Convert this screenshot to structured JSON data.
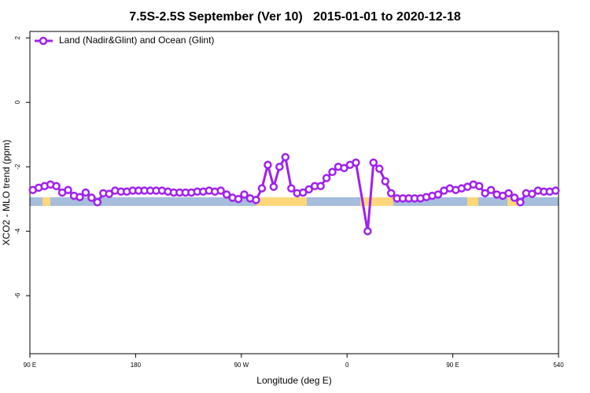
{
  "chart_data": {
    "type": "line",
    "title": "7.5S-2.5S September (Ver 10)   2015-01-01 to 2020-12-18",
    "xlabel": "Longitude (deg E)",
    "ylabel": "XCO2 - MLO trend (ppm)",
    "xlim": [
      90,
      540
    ],
    "ylim": [
      -7.8,
      2.2
    ],
    "xticks": [
      {
        "value": 90,
        "label": "90 E"
      },
      180,
      {
        "value": 270,
        "label": "90 W"
      },
      {
        "value": 360,
        "label": "0"
      },
      {
        "value": 450,
        "label": "90 E"
      },
      540
    ],
    "yticks": [
      2,
      0,
      -2,
      -4,
      -6
    ],
    "legend": "top-left",
    "x": [
      92.5,
      97.5,
      102.5,
      107.5,
      112.5,
      117.5,
      122.5,
      127.5,
      132.5,
      137.5,
      142.5,
      147.5,
      152.5,
      157.5,
      162.5,
      167.5,
      172.5,
      177.5,
      182.5,
      187.5,
      192.5,
      197.5,
      202.5,
      207.5,
      212.5,
      217.5,
      222.5,
      227.5,
      232.5,
      237.5,
      242.5,
      247.5,
      252.5,
      257.5,
      262.5,
      267.5,
      272.5,
      277.5,
      282.5,
      287.5,
      292.5,
      297.5,
      302.5,
      307.5,
      312.5,
      317.5,
      322.5,
      327.5,
      332.5,
      337.5,
      342.5,
      347.5,
      352.5,
      357.5,
      362.5,
      367.5,
      377.5,
      382.5,
      387.5,
      392.5,
      397.5,
      402.5,
      407.5,
      412.5,
      417.5,
      422.5,
      427.5,
      432.5,
      437.5,
      442.5,
      447.5,
      452.5,
      457.5,
      462.5,
      467.5,
      472.5,
      477.5,
      482.5,
      487.5,
      492.5,
      497.5,
      502.5,
      507.5,
      512.5,
      517.5,
      522.5,
      527.5,
      532.5,
      537.5
    ],
    "series": [
      {
        "name": "Land (Nadir&Glint) and Ocean (Glint)",
        "color": "#a020f0",
        "values": [
          -2.72,
          -2.65,
          -2.6,
          -2.55,
          -2.6,
          -2.8,
          -2.72,
          -2.9,
          -2.94,
          -2.8,
          -2.96,
          -3.1,
          -2.82,
          -2.84,
          -2.74,
          -2.77,
          -2.77,
          -2.74,
          -2.74,
          -2.74,
          -2.74,
          -2.74,
          -2.74,
          -2.77,
          -2.8,
          -2.8,
          -2.8,
          -2.8,
          -2.77,
          -2.77,
          -2.74,
          -2.77,
          -2.74,
          -2.86,
          -2.96,
          -3.0,
          -2.86,
          -2.98,
          -3.03,
          -2.67,
          -1.94,
          -2.62,
          -2.0,
          -1.7,
          -2.67,
          -2.82,
          -2.8,
          -2.7,
          -2.6,
          -2.6,
          -2.35,
          -2.16,
          -2.0,
          -2.04,
          -1.94,
          -1.87,
          -4.0,
          -1.87,
          -2.06,
          -2.45,
          -2.82,
          -2.98,
          -2.98,
          -2.98,
          -2.98,
          -2.98,
          -2.94,
          -2.9,
          -2.86,
          -2.74,
          -2.67,
          -2.72,
          -2.67,
          -2.62,
          -2.55,
          -2.6,
          -2.82,
          -2.72,
          -2.86,
          -2.9,
          -2.82,
          -2.96,
          -3.1,
          -2.82,
          -2.84,
          -2.74,
          -2.77,
          -2.77,
          -2.74
        ]
      }
    ]
  }
}
